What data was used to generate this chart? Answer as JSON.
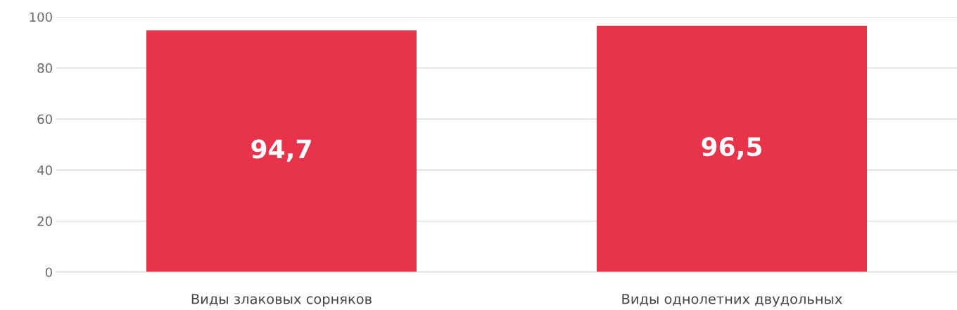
{
  "chart_data": {
    "type": "bar",
    "categories": [
      "Виды злаковых сорняков",
      "Виды однолетних двудольных"
    ],
    "values": [
      94.7,
      96.5
    ],
    "color": "#e8344a",
    "value_labels": [
      "94,7",
      "96,5"
    ],
    "ylim": [
      0,
      100
    ],
    "yticks": [
      0,
      20,
      40,
      60,
      80,
      100
    ],
    "grid": "y",
    "legend": false
  }
}
